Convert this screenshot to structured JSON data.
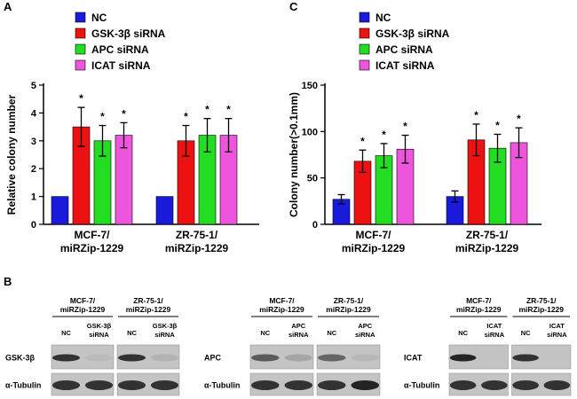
{
  "panel_labels": {
    "a": "A",
    "b": "B",
    "c": "C"
  },
  "colors": {
    "NC": "#1a1adb",
    "GSK": "#ee1111",
    "APC": "#22dd22",
    "ICAT": "#ee55dd"
  },
  "chart_data": [
    {
      "type": "bar",
      "panel": "A",
      "ylabel": "Relative colony number",
      "ylim": [
        0,
        5
      ],
      "yticks": [
        0,
        1,
        2,
        3,
        4,
        5
      ],
      "groups": [
        "MCF-7/\nmiRZip-1229",
        "ZR-75-1/\nmiRZip-1229"
      ],
      "group_lines": [
        [
          "MCF-7/",
          "miRZip-1229"
        ],
        [
          "ZR-75-1/",
          "miRZip-1229"
        ]
      ],
      "legend_location": "top",
      "series": [
        {
          "name": "NC",
          "values": [
            1.0,
            1.0
          ],
          "errors": [
            0,
            0
          ],
          "significant": [
            false,
            false
          ]
        },
        {
          "name": "GSK-3β siRNA",
          "values": [
            3.5,
            3.0
          ],
          "errors": [
            0.7,
            0.55
          ],
          "significant": [
            true,
            true
          ]
        },
        {
          "name": "APC siRNA",
          "values": [
            3.0,
            3.2
          ],
          "errors": [
            0.55,
            0.6
          ],
          "significant": [
            true,
            true
          ]
        },
        {
          "name": "ICAT siRNA",
          "values": [
            3.2,
            3.2
          ],
          "errors": [
            0.45,
            0.6
          ],
          "significant": [
            true,
            true
          ]
        }
      ],
      "significance_marker": "*"
    },
    {
      "type": "bar",
      "panel": "C",
      "ylabel": "Colony number(>0.1mm)",
      "ylim": [
        0,
        150
      ],
      "yticks": [
        0,
        50,
        100,
        150
      ],
      "groups": [
        "MCF-7/\nmiRZip-1229",
        "ZR-75-1/\nmiRZip-1229"
      ],
      "group_lines": [
        [
          "MCF-7/",
          "miRZip-1229"
        ],
        [
          "ZR-75-1/",
          "miRZip-1229"
        ]
      ],
      "legend_location": "top",
      "series": [
        {
          "name": "NC",
          "values": [
            27,
            30
          ],
          "errors": [
            5,
            6
          ],
          "significant": [
            false,
            false
          ]
        },
        {
          "name": "GSK-3β siRNA",
          "values": [
            68,
            91
          ],
          "errors": [
            12,
            17
          ],
          "significant": [
            true,
            true
          ]
        },
        {
          "name": "APC siRNA",
          "values": [
            74,
            82
          ],
          "errors": [
            13,
            15
          ],
          "significant": [
            true,
            true
          ]
        },
        {
          "name": "ICAT siRNA",
          "values": [
            81,
            88
          ],
          "errors": [
            15,
            16
          ],
          "significant": [
            true,
            true
          ]
        }
      ],
      "significance_marker": "*"
    }
  ],
  "blots": [
    {
      "cell_lines": [
        [
          "MCF-7/",
          "miRZip-1229"
        ],
        [
          "ZR-75-1/",
          "miRZip-1229"
        ]
      ],
      "lanes": [
        [
          "NC"
        ],
        [
          "GSK-3β",
          "siRNA"
        ],
        [
          "NC"
        ],
        [
          "GSK-3β",
          "siRNA"
        ]
      ],
      "rows": [
        "GSK-3β",
        "α-Tubulin"
      ],
      "top_intensity": [
        0.9,
        0.15,
        0.9,
        0.25
      ],
      "bottom_intensity": [
        0.9,
        0.9,
        0.9,
        0.9
      ]
    },
    {
      "cell_lines": [
        [
          "MCF-7/",
          "miRZip-1229"
        ],
        [
          "ZR-75-1/",
          "miRZip-1229"
        ]
      ],
      "lanes": [
        [
          "NC"
        ],
        [
          "APC",
          "siRNA"
        ],
        [
          "NC"
        ],
        [
          "APC",
          "siRNA"
        ]
      ],
      "rows": [
        "APC",
        "α-Tubulin"
      ],
      "top_intensity": [
        0.75,
        0.35,
        0.7,
        0.2
      ],
      "bottom_intensity": [
        0.9,
        0.9,
        0.9,
        0.95
      ]
    },
    {
      "cell_lines": [
        [
          "MCF-7/",
          "miRZip-1229"
        ],
        [
          "ZR-75-1/",
          "miRZip-1229"
        ]
      ],
      "lanes": [
        [
          "NC"
        ],
        [
          "ICAT",
          "siRNA"
        ],
        [
          "NC"
        ],
        [
          "ICAT",
          "siRNA"
        ]
      ],
      "rows": [
        "ICAT",
        "α-Tubulin"
      ],
      "top_intensity": [
        0.95,
        0.05,
        0.9,
        0.05
      ],
      "bottom_intensity": [
        0.9,
        0.9,
        0.9,
        0.9
      ]
    }
  ]
}
